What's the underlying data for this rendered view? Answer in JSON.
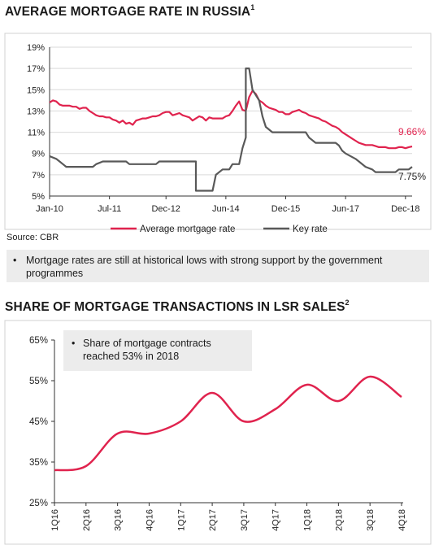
{
  "title1": "AVERAGE MORTGAGE RATE IN RUSSIA",
  "title1_sup": "1",
  "title2": "SHARE OF MORTGAGE TRANSACTIONS IN LSR SALES",
  "title2_sup": "2",
  "source": "Source: CBR",
  "bullet": "•",
  "note1": "Mortgage rates are still at historical lows with strong support by the government programmes",
  "note2": "Share of mortgage contracts reached 53% in 2018",
  "colors": {
    "mortgage": "#e0234e",
    "key": "#595959",
    "share": "#e0234e",
    "box": "#ececec"
  },
  "chart_data": [
    {
      "type": "line",
      "title": "AVERAGE MORTGAGE RATE IN RUSSIA",
      "ylim": [
        5,
        19
      ],
      "yticks": [
        "19%",
        "17%",
        "15%",
        "13%",
        "11%",
        "9%",
        "7%",
        "5%"
      ],
      "xticks": [
        "Jan-10",
        "Jul-11",
        "Dec-12",
        "Jun-14",
        "Dec-15",
        "Jun-17",
        "Dec-18"
      ],
      "xrange": [
        "2010-01",
        "2019-02"
      ],
      "grid": "horizontal",
      "legend": "bottom",
      "series": [
        {
          "name": "Average mortgage rate",
          "end_label": "9.66%",
          "points": [
            [
              "2010-01",
              13.8
            ],
            [
              "2010-02",
              14.0
            ],
            [
              "2010-03",
              13.9
            ],
            [
              "2010-04",
              13.6
            ],
            [
              "2010-05",
              13.5
            ],
            [
              "2010-06",
              13.5
            ],
            [
              "2010-07",
              13.5
            ],
            [
              "2010-08",
              13.4
            ],
            [
              "2010-09",
              13.4
            ],
            [
              "2010-10",
              13.2
            ],
            [
              "2010-11",
              13.3
            ],
            [
              "2010-12",
              13.3
            ],
            [
              "2011-01",
              13.0
            ],
            [
              "2011-02",
              12.8
            ],
            [
              "2011-03",
              12.6
            ],
            [
              "2011-04",
              12.5
            ],
            [
              "2011-05",
              12.5
            ],
            [
              "2011-06",
              12.4
            ],
            [
              "2011-07",
              12.4
            ],
            [
              "2011-08",
              12.2
            ],
            [
              "2011-09",
              12.1
            ],
            [
              "2011-10",
              11.9
            ],
            [
              "2011-11",
              12.1
            ],
            [
              "2011-12",
              11.8
            ],
            [
              "2012-01",
              11.9
            ],
            [
              "2012-02",
              11.7
            ],
            [
              "2012-03",
              12.1
            ],
            [
              "2012-04",
              12.2
            ],
            [
              "2012-05",
              12.3
            ],
            [
              "2012-06",
              12.3
            ],
            [
              "2012-07",
              12.4
            ],
            [
              "2012-08",
              12.5
            ],
            [
              "2012-09",
              12.5
            ],
            [
              "2012-10",
              12.6
            ],
            [
              "2012-11",
              12.8
            ],
            [
              "2012-12",
              12.9
            ],
            [
              "2013-01",
              12.9
            ],
            [
              "2013-02",
              12.6
            ],
            [
              "2013-03",
              12.7
            ],
            [
              "2013-04",
              12.8
            ],
            [
              "2013-05",
              12.6
            ],
            [
              "2013-06",
              12.5
            ],
            [
              "2013-07",
              12.4
            ],
            [
              "2013-08",
              12.1
            ],
            [
              "2013-09",
              12.3
            ],
            [
              "2013-10",
              12.5
            ],
            [
              "2013-11",
              12.4
            ],
            [
              "2013-12",
              12.1
            ],
            [
              "2014-01",
              12.4
            ],
            [
              "2014-02",
              12.3
            ],
            [
              "2014-03",
              12.3
            ],
            [
              "2014-04",
              12.3
            ],
            [
              "2014-05",
              12.3
            ],
            [
              "2014-06",
              12.5
            ],
            [
              "2014-07",
              12.6
            ],
            [
              "2014-08",
              13.0
            ],
            [
              "2014-09",
              13.5
            ],
            [
              "2014-10",
              13.9
            ],
            [
              "2014-11",
              13.1
            ],
            [
              "2014-12",
              13.0
            ],
            [
              "2015-01",
              14.3
            ],
            [
              "2015-02",
              14.9
            ],
            [
              "2015-03",
              14.6
            ],
            [
              "2015-04",
              14.0
            ],
            [
              "2015-05",
              13.8
            ],
            [
              "2015-06",
              13.5
            ],
            [
              "2015-07",
              13.3
            ],
            [
              "2015-08",
              13.2
            ],
            [
              "2015-09",
              13.1
            ],
            [
              "2015-10",
              12.9
            ],
            [
              "2015-11",
              12.9
            ],
            [
              "2015-12",
              12.7
            ],
            [
              "2016-01",
              12.7
            ],
            [
              "2016-02",
              12.9
            ],
            [
              "2016-03",
              13.0
            ],
            [
              "2016-04",
              13.1
            ],
            [
              "2016-05",
              12.9
            ],
            [
              "2016-06",
              12.8
            ],
            [
              "2016-07",
              12.6
            ],
            [
              "2016-08",
              12.5
            ],
            [
              "2016-09",
              12.4
            ],
            [
              "2016-10",
              12.3
            ],
            [
              "2016-11",
              12.1
            ],
            [
              "2016-12",
              12.0
            ],
            [
              "2017-01",
              11.8
            ],
            [
              "2017-02",
              11.6
            ],
            [
              "2017-03",
              11.5
            ],
            [
              "2017-04",
              11.3
            ],
            [
              "2017-05",
              11.0
            ],
            [
              "2017-06",
              10.8
            ],
            [
              "2017-07",
              10.6
            ],
            [
              "2017-08",
              10.4
            ],
            [
              "2017-09",
              10.2
            ],
            [
              "2017-10",
              10.0
            ],
            [
              "2017-11",
              9.9
            ],
            [
              "2017-12",
              9.8
            ],
            [
              "2018-01",
              9.8
            ],
            [
              "2018-02",
              9.8
            ],
            [
              "2018-03",
              9.7
            ],
            [
              "2018-04",
              9.6
            ],
            [
              "2018-05",
              9.6
            ],
            [
              "2018-06",
              9.6
            ],
            [
              "2018-07",
              9.5
            ],
            [
              "2018-08",
              9.5
            ],
            [
              "2018-09",
              9.5
            ],
            [
              "2018-10",
              9.6
            ],
            [
              "2018-11",
              9.6
            ],
            [
              "2018-12",
              9.5
            ],
            [
              "2019-01",
              9.6
            ],
            [
              "2019-02",
              9.66
            ]
          ]
        },
        {
          "name": "Key rate",
          "end_label": "7.75%",
          "points": [
            [
              "2010-01",
              8.75
            ],
            [
              "2010-03",
              8.5
            ],
            [
              "2010-04",
              8.25
            ],
            [
              "2010-05",
              8.0
            ],
            [
              "2010-06",
              7.75
            ],
            [
              "2011-02",
              7.75
            ],
            [
              "2011-03",
              8.0
            ],
            [
              "2011-05",
              8.25
            ],
            [
              "2011-12",
              8.25
            ],
            [
              "2012-01",
              8.0
            ],
            [
              "2012-09",
              8.0
            ],
            [
              "2012-10",
              8.25
            ],
            [
              "2013-09",
              8.25
            ],
            [
              "2013-09",
              5.5
            ],
            [
              "2014-02",
              5.5
            ],
            [
              "2014-03",
              7.0
            ],
            [
              "2014-05",
              7.5
            ],
            [
              "2014-07",
              7.5
            ],
            [
              "2014-08",
              8.0
            ],
            [
              "2014-10",
              8.0
            ],
            [
              "2014-11",
              9.5
            ],
            [
              "2014-12",
              10.5
            ],
            [
              "2014-12",
              17.0
            ],
            [
              "2015-01",
              17.0
            ],
            [
              "2015-02",
              15.0
            ],
            [
              "2015-04",
              14.0
            ],
            [
              "2015-05",
              12.5
            ],
            [
              "2015-06",
              11.5
            ],
            [
              "2015-08",
              11.0
            ],
            [
              "2016-06",
              11.0
            ],
            [
              "2016-07",
              10.5
            ],
            [
              "2016-09",
              10.0
            ],
            [
              "2017-03",
              10.0
            ],
            [
              "2017-04",
              9.75
            ],
            [
              "2017-05",
              9.25
            ],
            [
              "2017-06",
              9.0
            ],
            [
              "2017-09",
              8.5
            ],
            [
              "2017-10",
              8.25
            ],
            [
              "2017-12",
              7.75
            ],
            [
              "2018-02",
              7.5
            ],
            [
              "2018-03",
              7.25
            ],
            [
              "2018-09",
              7.25
            ],
            [
              "2018-10",
              7.5
            ],
            [
              "2018-12",
              7.5
            ],
            [
              "2019-01",
              7.5
            ],
            [
              "2019-02",
              7.75
            ]
          ]
        }
      ]
    },
    {
      "type": "line",
      "title": "SHARE OF MORTGAGE TRANSACTIONS IN LSR SALES",
      "ylim": [
        25,
        65
      ],
      "yticks": [
        "65%",
        "55%",
        "45%",
        "35%",
        "25%"
      ],
      "categories": [
        "1Q16",
        "2Q16",
        "3Q16",
        "4Q16",
        "1Q17",
        "2Q17",
        "3Q17",
        "4Q17",
        "1Q18",
        "2Q18",
        "3Q18",
        "4Q18"
      ],
      "values": [
        33,
        34,
        42,
        42,
        45,
        52,
        45,
        48,
        54,
        50,
        56,
        51
      ],
      "series": [
        {
          "values": [
            33,
            34,
            42,
            42,
            45,
            52,
            45,
            48,
            54,
            50,
            56,
            51
          ]
        }
      ]
    }
  ]
}
